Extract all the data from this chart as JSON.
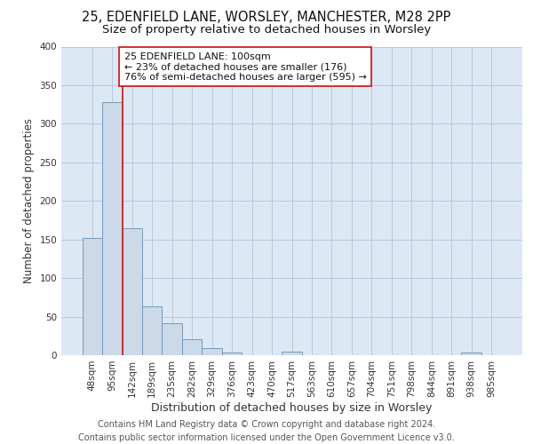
{
  "title_line1": "25, EDENFIELD LANE, WORSLEY, MANCHESTER, M28 2PP",
  "title_line2": "Size of property relative to detached houses in Worsley",
  "xlabel": "Distribution of detached houses by size in Worsley",
  "ylabel": "Number of detached properties",
  "categories": [
    "48sqm",
    "95sqm",
    "142sqm",
    "189sqm",
    "235sqm",
    "282sqm",
    "329sqm",
    "376sqm",
    "423sqm",
    "470sqm",
    "517sqm",
    "563sqm",
    "610sqm",
    "657sqm",
    "704sqm",
    "751sqm",
    "798sqm",
    "844sqm",
    "891sqm",
    "938sqm",
    "985sqm"
  ],
  "values": [
    152,
    328,
    165,
    63,
    42,
    21,
    9,
    4,
    0,
    0,
    5,
    0,
    0,
    0,
    0,
    0,
    0,
    0,
    0,
    4,
    0
  ],
  "bar_color": "#ccd9e8",
  "bar_edge_color": "#7799bb",
  "vline_color": "#cc2222",
  "vline_x": 1.5,
  "annotation_text": "25 EDENFIELD LANE: 100sqm\n← 23% of detached houses are smaller (176)\n76% of semi-detached houses are larger (595) →",
  "annotation_box_color": "white",
  "annotation_box_edge_color": "#cc2222",
  "annotation_fontsize": 8,
  "ylim": [
    0,
    400
  ],
  "yticks": [
    0,
    50,
    100,
    150,
    200,
    250,
    300,
    350,
    400
  ],
  "grid_color": "#b8c8dc",
  "background_color": "#dce8f4",
  "footer_text": "Contains HM Land Registry data © Crown copyright and database right 2024.\nContains public sector information licensed under the Open Government Licence v3.0.",
  "title_fontsize": 10.5,
  "subtitle_fontsize": 9.5,
  "xlabel_fontsize": 9,
  "ylabel_fontsize": 8.5,
  "tick_fontsize": 7.5,
  "footer_fontsize": 7
}
